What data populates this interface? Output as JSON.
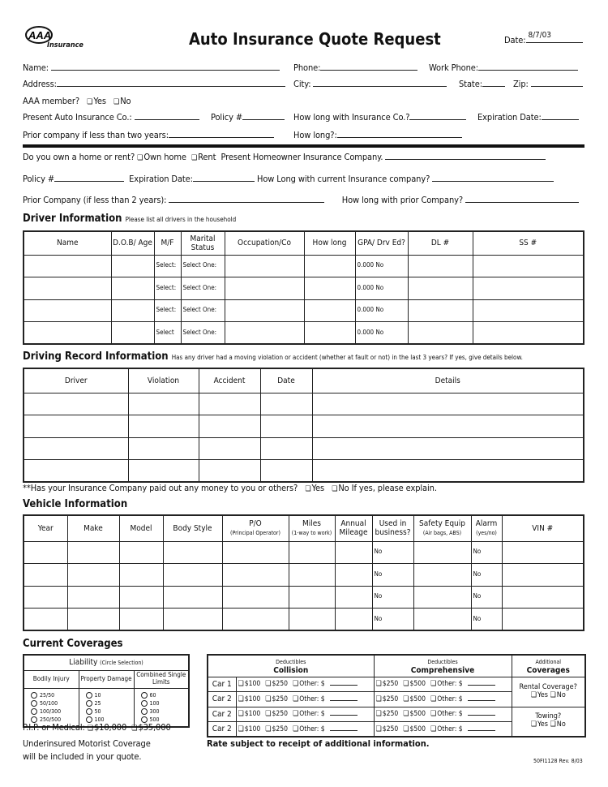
{
  "header": {
    "logo_text": "AAA",
    "logo_sub": "Insurance",
    "title": "Auto Insurance Quote Request",
    "date_label": "Date:",
    "date_value": "8/7/03"
  },
  "personal": {
    "name": "Name:",
    "phone": "Phone:",
    "work_phone": "Work Phone:",
    "address": "Address:",
    "city": "City:",
    "state": "State:",
    "zip": "Zip:",
    "aaa_member": "AAA member?",
    "yes": "Yes",
    "no": "No",
    "present_auto": "Present Auto Insurance Co.:",
    "policy": "Policy #",
    "how_long_ins": "How long with Insurance Co.?",
    "expiration": "Expiration Date:",
    "prior_company": "Prior company if less than two years:",
    "how_long": "How long?:"
  },
  "home": {
    "own_or_rent": "Do you own a home or rent?",
    "own": "Own home",
    "rent": "Rent",
    "present_home": "Present Homeowner Insurance Company.",
    "policy": "Policy #",
    "expiration": "Expiration Date:",
    "how_long_current": "How Long with current Insurance company?",
    "prior": "Prior Company (if less than 2 years):",
    "how_long_prior": "How long with prior Company?"
  },
  "drivers": {
    "heading": "Driver Information",
    "note": "Please list all drivers in the household",
    "columns": [
      "Name",
      "D.O.B/ Age",
      "M/F",
      "Marital Status",
      "Occupation/Co",
      "How long",
      "GPA/ Drv Ed?",
      "DL #",
      "SS #"
    ],
    "rows": [
      [
        "",
        "",
        "Select:",
        "Select One:",
        "",
        "",
        "0.000   No",
        "",
        ""
      ],
      [
        "",
        "",
        "Select:",
        "Select One:",
        "",
        "",
        "0.000   No",
        "",
        ""
      ],
      [
        "",
        "",
        "Select:",
        "Select One:",
        "",
        "",
        "0.000   No",
        "",
        ""
      ],
      [
        "",
        "",
        "Select",
        "Select One:",
        "",
        "",
        "0.000   No",
        "",
        ""
      ]
    ]
  },
  "record": {
    "heading": "Driving Record Information",
    "note": "Has any driver had a moving violation or accident (whether at fault or not) in the last 3 years? If yes, give details below.",
    "columns": [
      "Driver",
      "Violation",
      "Accident",
      "Date",
      "Details"
    ],
    "rows": [
      [
        "",
        "",
        "",
        "",
        ""
      ],
      [
        "",
        "",
        "",
        "",
        ""
      ],
      [
        "",
        "",
        "",
        "",
        ""
      ],
      [
        "",
        "",
        "",
        "",
        ""
      ]
    ],
    "payout": "**Has your Insurance Company paid out any money to you or others?",
    "yes": "Yes",
    "no": "No",
    "explain": "If yes, please explain."
  },
  "vehicles": {
    "heading": "Vehicle Information",
    "columns": [
      "Year",
      "Make",
      "Model",
      "Body Style",
      "P/O",
      "Miles",
      "Annual Mileage",
      "Used in business?",
      "Safety Equip",
      "Alarm",
      "VIN #"
    ],
    "subs": [
      "",
      "",
      "",
      "",
      "(Principal Operator)",
      "(1-way to work)",
      "",
      "",
      "(Air bags, ABS)",
      "(yes/no)",
      ""
    ],
    "rows": [
      [
        "",
        "",
        "",
        "",
        "",
        "",
        "",
        "No",
        "",
        "No",
        ""
      ],
      [
        "",
        "",
        "",
        "",
        "",
        "",
        "",
        "No",
        "",
        "No",
        ""
      ],
      [
        "",
        "",
        "",
        "",
        "",
        "",
        "",
        "No",
        "",
        "No",
        ""
      ],
      [
        "",
        "",
        "",
        "",
        "",
        "",
        "",
        "No",
        "",
        "No",
        ""
      ]
    ]
  },
  "coverages": {
    "heading": "Current Coverages",
    "liability": {
      "title": "Liability",
      "note": "(Circle Selection)",
      "columns": [
        "Bodily Injury",
        "Property Damage",
        "Combined Single Limits"
      ],
      "options": [
        [
          "25/50",
          "10",
          "60"
        ],
        [
          "50/100",
          "25",
          "100"
        ],
        [
          "100/300",
          "50",
          "300"
        ],
        [
          "250/500",
          "100",
          "500"
        ]
      ]
    },
    "pip": "P.I.P. or Medical:",
    "pip_options": [
      "$10,000",
      "$35,000"
    ],
    "underinsured": "Underinsured Motorist Coverage",
    "underinsured2": "will be included in your quote.",
    "deductibles": {
      "label": "Deductibles",
      "collision": "Collision",
      "comprehensive": "Comprehensive",
      "additional": "Additional",
      "coverages": "Coverages",
      "cars": [
        "Car 1",
        "Car 2",
        "Car 2",
        "Car 2"
      ],
      "collision_opts": [
        "$100",
        "$250",
        "Other: $"
      ],
      "comp_opts": [
        "$250",
        "$500",
        "Other: $"
      ],
      "rental": "Rental Coverage?",
      "towing": "Towing?",
      "yes": "Yes",
      "no": "No"
    },
    "rate_note": "Rate subject to receipt of additional information.",
    "form_id": "50FI1128 Rev. 8/03"
  }
}
